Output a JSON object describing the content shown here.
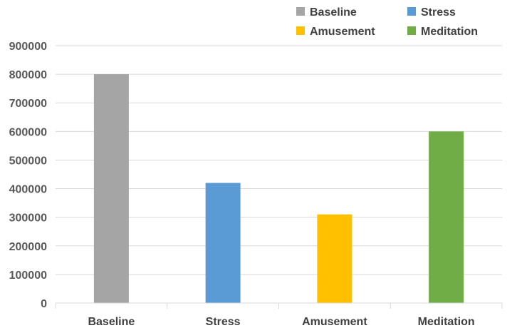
{
  "chart_data": {
    "type": "bar",
    "categories": [
      "Baseline",
      "Stress",
      "Amusement",
      "Meditation"
    ],
    "values": [
      800000,
      420000,
      310000,
      600000
    ],
    "colors": [
      "#a5a5a5",
      "#5b9bd5",
      "#ffc000",
      "#70ad47"
    ],
    "ylim": [
      0,
      900000
    ],
    "yticks": [
      "0",
      "100000",
      "200000",
      "300000",
      "400000",
      "500000",
      "600000",
      "700000",
      "800000",
      "900000"
    ],
    "grid": true,
    "legend": {
      "placement": "top-right",
      "entries": [
        "Baseline",
        "Stress",
        "Amusement",
        "Meditation"
      ]
    }
  }
}
